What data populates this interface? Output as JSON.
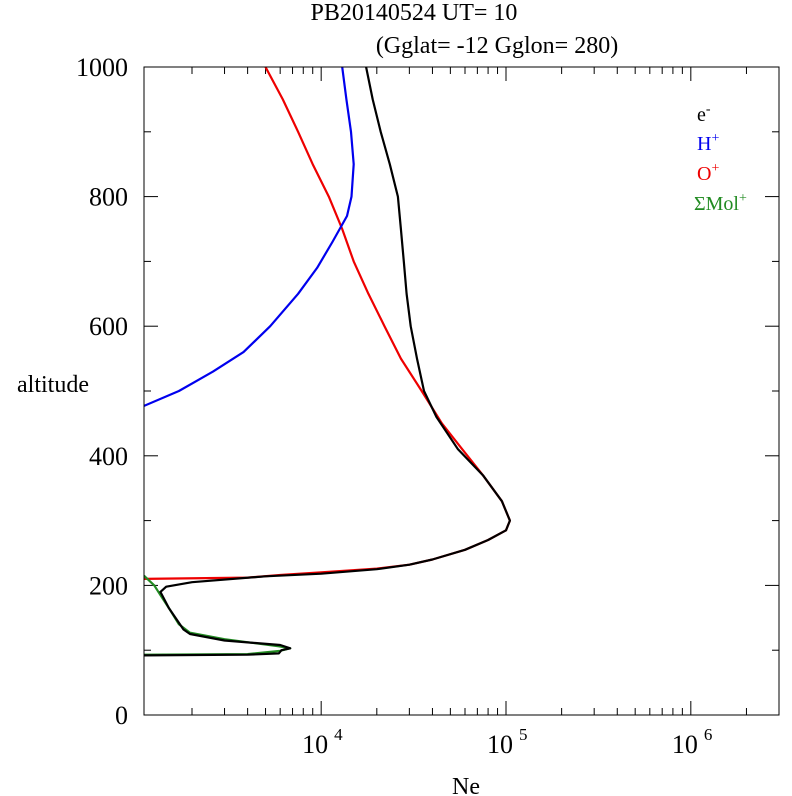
{
  "chart_data": {
    "type": "line",
    "title": "PB20140524   UT=  10",
    "subtitle": "(Gglat= -12   Gglon=  280)",
    "xlabel": "Ne",
    "ylabel": "altitude",
    "x_scale": "log",
    "xlim": [
      1100,
      3000000
    ],
    "ylim": [
      0,
      1000
    ],
    "y_ticks": [
      0,
      200,
      400,
      600,
      800,
      1000
    ],
    "x_ticks": [
      {
        "value": 10000,
        "base": "10",
        "exp": "4"
      },
      {
        "value": 100000,
        "base": "10",
        "exp": "5"
      },
      {
        "value": 1000000,
        "base": "10",
        "exp": "6"
      }
    ],
    "legend_position": "top-right",
    "series": [
      {
        "name": "e-",
        "label_base": "e",
        "label_sup": "-",
        "color": "#000000",
        "points": [
          [
            1100,
            92
          ],
          [
            4000,
            93
          ],
          [
            5900,
            95
          ],
          [
            6100,
            100
          ],
          [
            6800,
            103
          ],
          [
            6000,
            108
          ],
          [
            3000,
            115
          ],
          [
            1950,
            125
          ],
          [
            1800,
            132
          ],
          [
            1500,
            165
          ],
          [
            1350,
            190
          ],
          [
            1450,
            198
          ],
          [
            2000,
            205
          ],
          [
            5000,
            214
          ],
          [
            10000,
            218
          ],
          [
            20000,
            225
          ],
          [
            30000,
            232
          ],
          [
            40000,
            240
          ],
          [
            60000,
            255
          ],
          [
            80000,
            270
          ],
          [
            100000,
            285
          ],
          [
            105000,
            300
          ],
          [
            95000,
            330
          ],
          [
            75000,
            370
          ],
          [
            55000,
            410
          ],
          [
            42000,
            460
          ],
          [
            36000,
            500
          ],
          [
            33000,
            550
          ],
          [
            30500,
            600
          ],
          [
            29000,
            650
          ],
          [
            28000,
            700
          ],
          [
            27000,
            750
          ],
          [
            26000,
            800
          ],
          [
            23500,
            850
          ],
          [
            21000,
            900
          ],
          [
            19000,
            950
          ],
          [
            17500,
            1000
          ]
        ]
      },
      {
        "name": "H+",
        "label_base": "H",
        "label_sup": "+",
        "color": "#0000ee",
        "points": [
          [
            1100,
            477
          ],
          [
            1700,
            500
          ],
          [
            2600,
            530
          ],
          [
            3800,
            560
          ],
          [
            5300,
            600
          ],
          [
            7500,
            650
          ],
          [
            9500,
            690
          ],
          [
            11500,
            730
          ],
          [
            13800,
            770
          ],
          [
            14600,
            800
          ],
          [
            15000,
            850
          ],
          [
            14500,
            900
          ],
          [
            13700,
            950
          ],
          [
            13000,
            1000
          ]
        ]
      },
      {
        "name": "O+",
        "label_base": "O",
        "label_sup": "+",
        "color": "#ee0000",
        "points": [
          [
            1100,
            210
          ],
          [
            4000,
            212
          ],
          [
            6000,
            216
          ],
          [
            10000,
            220
          ],
          [
            20000,
            226
          ],
          [
            30000,
            232
          ],
          [
            40000,
            240
          ],
          [
            60000,
            255
          ],
          [
            80000,
            270
          ],
          [
            100000,
            285
          ],
          [
            105000,
            300
          ],
          [
            95000,
            330
          ],
          [
            75000,
            370
          ],
          [
            58000,
            410
          ],
          [
            45000,
            450
          ],
          [
            35000,
            500
          ],
          [
            27000,
            550
          ],
          [
            22000,
            600
          ],
          [
            18000,
            650
          ],
          [
            15000,
            700
          ],
          [
            13000,
            750
          ],
          [
            11000,
            800
          ],
          [
            9000,
            850
          ],
          [
            7500,
            900
          ],
          [
            6200,
            950
          ],
          [
            5000,
            1000
          ]
        ]
      },
      {
        "name": "ΣMol+",
        "label_base": "ΣMol",
        "label_sup": "+",
        "color": "#228b22",
        "points": [
          [
            1100,
            215
          ],
          [
            1250,
            200
          ],
          [
            1350,
            185
          ],
          [
            1500,
            165
          ],
          [
            1700,
            140
          ],
          [
            1950,
            127
          ],
          [
            3000,
            117
          ],
          [
            5900,
            106
          ],
          [
            6800,
            103
          ],
          [
            6000,
            99
          ],
          [
            4000,
            94
          ],
          [
            1100,
            93
          ]
        ]
      }
    ]
  }
}
